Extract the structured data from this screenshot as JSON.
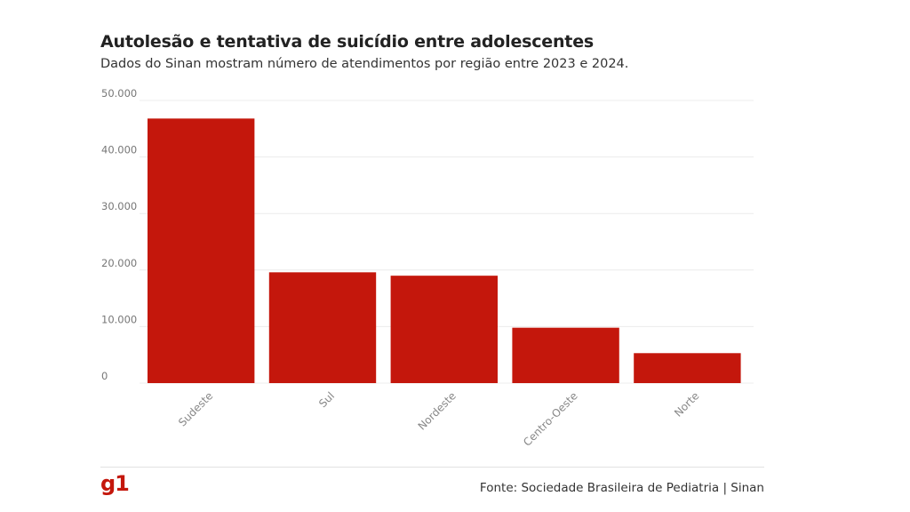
{
  "header": {
    "title": "Autolesão e tentativa de suicídio entre adolescentes",
    "subtitle": "Dados do Sinan mostram número de atendimentos por região entre 2023 e 2024."
  },
  "footer": {
    "logo": "g1",
    "source": "Fonte: Sociedade Brasileira de Pediatria | Sinan"
  },
  "chart_data": {
    "type": "bar",
    "categories": [
      "Sudeste",
      "Sul",
      "Nordeste",
      "Centro-Oeste",
      "Norte"
    ],
    "values": [
      46800,
      19600,
      19000,
      9800,
      5300
    ],
    "ylim": [
      0,
      50000
    ],
    "yticks": [
      0,
      10000,
      20000,
      30000,
      40000,
      50000
    ],
    "ytick_labels": [
      "0",
      "10.000",
      "20.000",
      "30.000",
      "40.000",
      "50.000"
    ],
    "bar_color": "#c4170c",
    "grid": true,
    "legend": "none"
  }
}
